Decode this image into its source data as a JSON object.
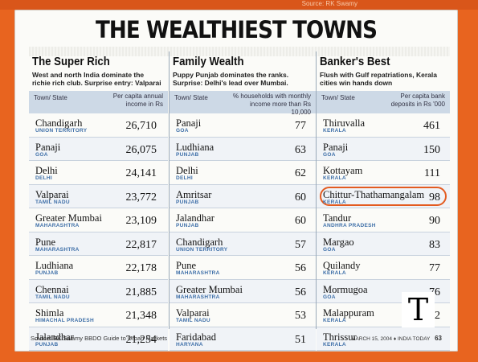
{
  "source_top": "Source: RK Swamy",
  "headline": "THE WEALTHIEST TOWNS",
  "panels": [
    {
      "title": "The Super Rich",
      "desc": "West and north India dominate the richie rich club. Surprise entry: Valparai",
      "col1": "Town/ State",
      "col2": "Per capita annual income in Rs",
      "rows": [
        {
          "town": "Chandigarh",
          "state": "UNION TERRITORY",
          "value": "26,710"
        },
        {
          "town": "Panaji",
          "state": "GOA",
          "value": "26,075"
        },
        {
          "town": "Delhi",
          "state": "DELHI",
          "value": "24,141"
        },
        {
          "town": "Valparai",
          "state": "TAMIL NADU",
          "value": "23,772"
        },
        {
          "town": "Greater Mumbai",
          "state": "MAHARASHTRA",
          "value": "23,109"
        },
        {
          "town": "Pune",
          "state": "MAHARASHTRA",
          "value": "22,817"
        },
        {
          "town": "Ludhiana",
          "state": "PUNJAB",
          "value": "22,178"
        },
        {
          "town": "Chennai",
          "state": "TAMIL NADU",
          "value": "21,885"
        },
        {
          "town": "Shimla",
          "state": "HIMACHAL PRADESH",
          "value": "21,348"
        },
        {
          "town": "Jalandhar",
          "state": "PUNJAB",
          "value": "21,254"
        }
      ]
    },
    {
      "title": "Family Wealth",
      "desc": "Puppy Punjab dominates the ranks. Surprise: Delhi's lead over Mumbai.",
      "col1": "Town/ State",
      "col2": "% households with monthly income more than Rs 10,000",
      "rows": [
        {
          "town": "Panaji",
          "state": "GOA",
          "value": "77"
        },
        {
          "town": "Ludhiana",
          "state": "PUNJAB",
          "value": "63"
        },
        {
          "town": "Delhi",
          "state": "DELHI",
          "value": "62"
        },
        {
          "town": "Amritsar",
          "state": "PUNJAB",
          "value": "60"
        },
        {
          "town": "Jalandhar",
          "state": "PUNJAB",
          "value": "60"
        },
        {
          "town": "Chandigarh",
          "state": "UNION TERRITORY",
          "value": "57"
        },
        {
          "town": "Pune",
          "state": "MAHARASHTRA",
          "value": "56"
        },
        {
          "town": "Greater Mumbai",
          "state": "MAHARASHTRA",
          "value": "56"
        },
        {
          "town": "Valparai",
          "state": "TAMIL NADU",
          "value": "53"
        },
        {
          "town": "Faridabad",
          "state": "HARYANA",
          "value": "51"
        }
      ]
    },
    {
      "title": "Banker's Best",
      "desc": "Flush with Gulf repatriations, Kerala cities win hands down",
      "col1": "Town/ State",
      "col2": "Per capita bank deposits in Rs '000",
      "rows": [
        {
          "town": "Thiruvalla",
          "state": "KERALA",
          "value": "461"
        },
        {
          "town": "Panaji",
          "state": "GOA",
          "value": "150"
        },
        {
          "town": "Kottayam",
          "state": "KERALA",
          "value": "111"
        },
        {
          "town": "Chittur-Thathamangalam",
          "state": "KERALA",
          "value": "98",
          "highlighted": true
        },
        {
          "town": "Tandur",
          "state": "ANDHRA PRADESH",
          "value": "90"
        },
        {
          "town": "Margao",
          "state": "GOA",
          "value": "83"
        },
        {
          "town": "Quilandy",
          "state": "KERALA",
          "value": "77"
        },
        {
          "town": "Mormugoa",
          "state": "GOA",
          "value": "76"
        },
        {
          "town": "Malappuram",
          "state": "KERALA",
          "value": "72"
        },
        {
          "town": "Thrissur",
          "state": "KERALA",
          "value": ""
        }
      ]
    }
  ],
  "source_note": "Source: RK Swamy BBDO Guide to Urban Markets",
  "footer": {
    "date": "MARCH 15, 2004",
    "magazine": "INDIA TODAY",
    "page": "63"
  },
  "logo": "T",
  "colors": {
    "accent_orange": "#e35b20",
    "state_blue": "#3e6fa8",
    "header_blue": "#cdd9e6"
  }
}
